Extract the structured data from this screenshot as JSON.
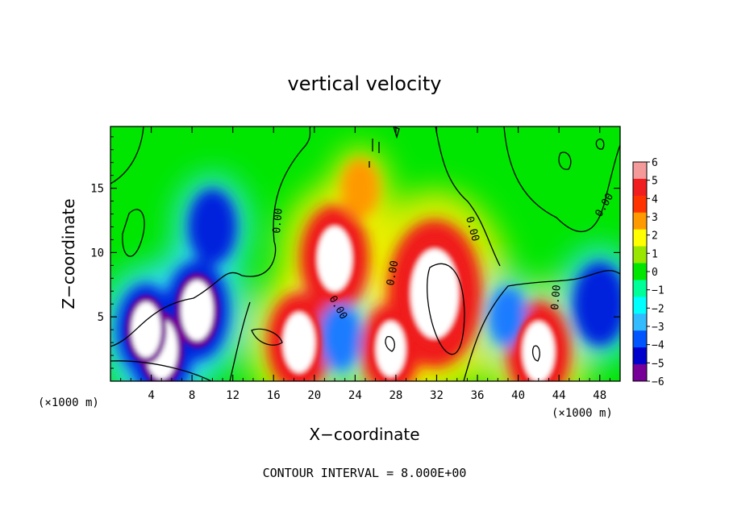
{
  "chart_data": {
    "type": "heatmap",
    "title": "vertical velocity",
    "xlabel": "X−coordinate",
    "ylabel": "Z−coordinate",
    "x_unit_label": "(×1000 m)",
    "x_unit_label_right": "(×1000 m)",
    "xlim": [
      0,
      50
    ],
    "ylim": [
      0,
      19.8
    ],
    "x_ticks": [
      4,
      8,
      12,
      16,
      20,
      24,
      28,
      32,
      36,
      40,
      44,
      48
    ],
    "y_ticks": [
      5,
      10,
      15
    ],
    "colorbar_levels": [
      6,
      5,
      4,
      3,
      2,
      1,
      0,
      -1,
      -2,
      -3,
      -4,
      -5,
      -6
    ],
    "colorbar_level_labels": [
      "6",
      "5",
      "4",
      "3",
      "2",
      "1",
      "0",
      "−1",
      "−2",
      "−3",
      "−4",
      "−5",
      "−6"
    ],
    "colorbar_colors": [
      "#f59a9a",
      "#f01e1e",
      "#ff3300",
      "#ff9900",
      "#ffff00",
      "#99e600",
      "#00e600",
      "#00ff99",
      "#00ffff",
      "#33bbff",
      "#0055ff",
      "#0000cc",
      "#770099"
    ],
    "contour_interval_text": "CONTOUR INTERVAL = 8.000E+00",
    "contour_labels": [
      "0.00",
      "0.00",
      "0.00",
      "0.00",
      "0.00",
      "0.00"
    ],
    "features": [
      {
        "x": 31.8,
        "z": 6.8,
        "w": 14,
        "kind": "updraft"
      },
      {
        "x": 22.0,
        "z": 9.5,
        "w": 9,
        "kind": "updraft"
      },
      {
        "x": 24.5,
        "z": 15.0,
        "w": 3,
        "kind": "updraft"
      },
      {
        "x": 18.5,
        "z": 3.0,
        "w": 8,
        "kind": "updraft"
      },
      {
        "x": 27.5,
        "z": 2.5,
        "w": 7,
        "kind": "updraft"
      },
      {
        "x": 42.0,
        "z": 2.3,
        "w": 8,
        "kind": "updraft"
      },
      {
        "x": 8.5,
        "z": 5.5,
        "w": -8,
        "kind": "downdraft"
      },
      {
        "x": 5.0,
        "z": 2.5,
        "w": -8,
        "kind": "downdraft"
      },
      {
        "x": 3.5,
        "z": 4.0,
        "w": -7,
        "kind": "downdraft"
      },
      {
        "x": 10.0,
        "z": 12.0,
        "w": -5,
        "kind": "downdraft"
      },
      {
        "x": 48.0,
        "z": 6.0,
        "w": -6,
        "kind": "downdraft"
      },
      {
        "x": 22.5,
        "z": 3.5,
        "w": -4,
        "kind": "downdraft"
      },
      {
        "x": 39.0,
        "z": 5.0,
        "w": -3,
        "kind": "downdraft"
      }
    ]
  }
}
